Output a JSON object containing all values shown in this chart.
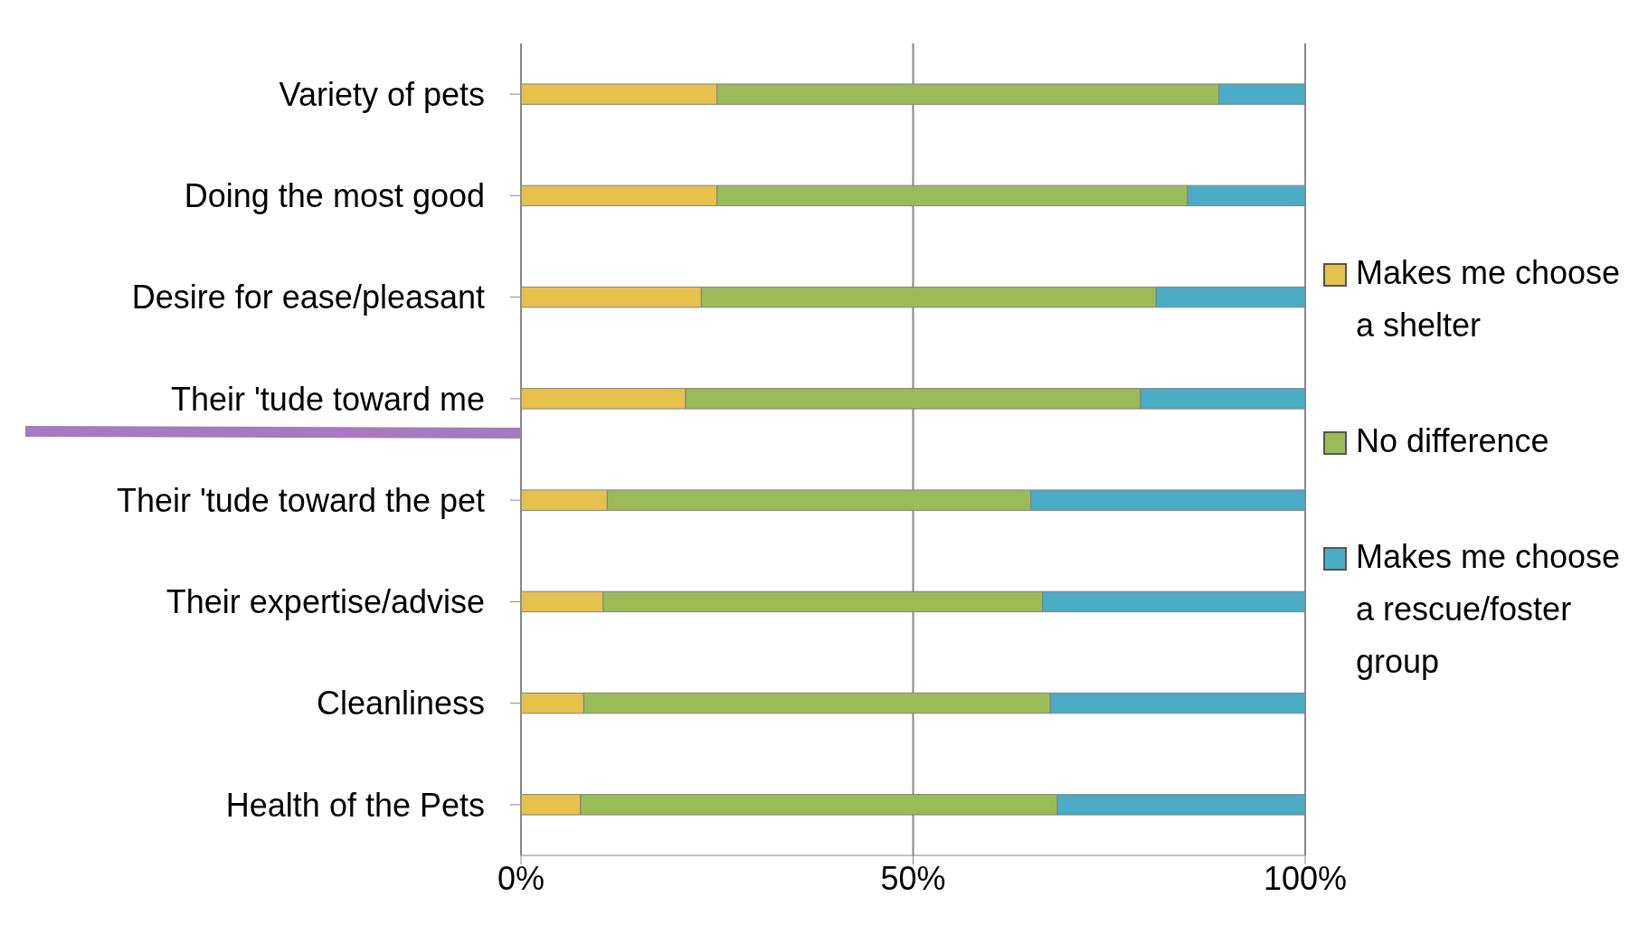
{
  "chart_data": {
    "type": "bar",
    "orientation": "horizontal",
    "stacked": true,
    "categories": [
      "Variety of pets",
      "Doing the most good",
      "Desire for ease/pleasant",
      "Their 'tude toward me",
      "Their 'tude toward the pet",
      "Their expertise/advise",
      "Cleanliness",
      "Health of the Pets"
    ],
    "series": [
      {
        "name": "Makes me choose a shelter",
        "color": "#e6c24c",
        "values": [
          25,
          25,
          23,
          21,
          11,
          10.5,
          8,
          7.6
        ]
      },
      {
        "name": "No difference",
        "color": "#9bbb59",
        "values": [
          64,
          60,
          58,
          58,
          54,
          56,
          59.5,
          60.8
        ]
      },
      {
        "name": "Makes me choose a rescue/foster group",
        "color": "#4bacc6",
        "values": [
          11,
          15,
          19,
          21,
          35,
          33.5,
          32.5,
          31.6
        ]
      }
    ],
    "xlim": [
      0,
      100
    ],
    "xticks": [
      {
        "value": 0,
        "label": "0%"
      },
      {
        "value": 50,
        "label": "50%"
      },
      {
        "value": 100,
        "label": "100%"
      }
    ],
    "grid": "x",
    "legend": "right"
  }
}
